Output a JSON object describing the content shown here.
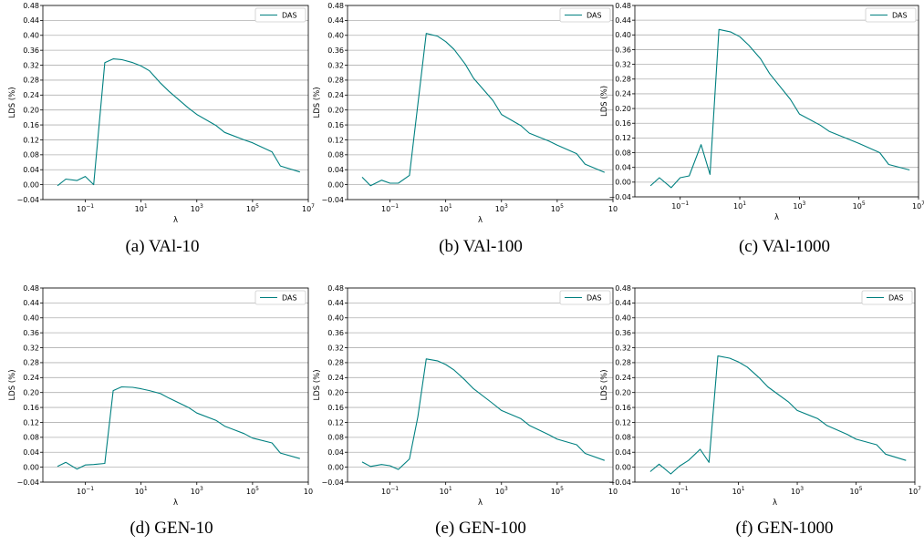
{
  "figure": {
    "captions": [
      "(a)  VAl-10",
      "(b)  VAl-100",
      "(c)  VAl-1000",
      "(d)  GEN-10",
      "(e)  GEN-100",
      "(f)  GEN-1000"
    ],
    "line_color": "#008080"
  },
  "chart_data": [
    {
      "type": "line",
      "panel": "a",
      "caption": "(a)  VAl-10",
      "xlabel": "λ",
      "ylabel": "LDS (%)",
      "xscale": "log",
      "xlim": [
        0.003,
        10000000
      ],
      "ylim": [
        -0.04,
        0.48
      ],
      "yticks": [
        "−0.04",
        "0.00",
        "0.04",
        "0.08",
        "0.12",
        "0.16",
        "0.20",
        "0.24",
        "0.28",
        "0.32",
        "0.36",
        "0.40",
        "0.44",
        "0.48"
      ],
      "xticks": [
        "10−1",
        "101",
        "103",
        "105",
        "107"
      ],
      "grid": "horizontal",
      "legend": "top-right",
      "series": [
        {
          "name": "DAS",
          "x": [
            0.01,
            0.02,
            0.05,
            0.1,
            0.2,
            0.5,
            1,
            2,
            5,
            10,
            20,
            50,
            100,
            500,
            1000,
            5000,
            10000,
            50000,
            100000,
            500000,
            1000000,
            5000000
          ],
          "y": [
            -0.003,
            0.015,
            0.011,
            0.022,
            0.0,
            0.327,
            0.337,
            0.335,
            0.327,
            0.318,
            0.305,
            0.272,
            0.25,
            0.205,
            0.188,
            0.158,
            0.14,
            0.12,
            0.112,
            0.088,
            0.05,
            0.034
          ]
        }
      ]
    },
    {
      "type": "line",
      "panel": "b",
      "caption": "(b)  VAl-100",
      "xlabel": "λ",
      "ylabel": "LDS (%)",
      "xscale": "log",
      "xlim": [
        0.003,
        10000000
      ],
      "ylim": [
        -0.04,
        0.48
      ],
      "yticks": [
        "−0.04",
        "0.00",
        "0.04",
        "0.08",
        "0.12",
        "0.16",
        "0.20",
        "0.24",
        "0.28",
        "0.32",
        "0.36",
        "0.40",
        "0.44",
        "0.48"
      ],
      "xticks": [
        "10−1",
        "101",
        "103",
        "105",
        "10"
      ],
      "grid": "horizontal",
      "legend": "top-right",
      "series": [
        {
          "name": "DAS",
          "x": [
            0.01,
            0.02,
            0.05,
            0.1,
            0.2,
            0.5,
            2,
            5,
            10,
            20,
            50,
            100,
            500,
            1000,
            5000,
            10000,
            50000,
            100000,
            500000,
            1000000,
            5000000
          ],
          "y": [
            0.02,
            -0.003,
            0.012,
            0.004,
            0.004,
            0.025,
            0.405,
            0.398,
            0.383,
            0.362,
            0.323,
            0.285,
            0.225,
            0.188,
            0.158,
            0.138,
            0.117,
            0.106,
            0.083,
            0.055,
            0.033
          ]
        }
      ]
    },
    {
      "type": "line",
      "panel": "c",
      "caption": "(c)  VAl-1000",
      "xlabel": "λ",
      "ylabel": "LDS (%)",
      "xscale": "log",
      "xlim": [
        0.003,
        10000000
      ],
      "ylim": [
        -0.04,
        0.48
      ],
      "yticks": [
        "−0.04",
        "0.00",
        "0.04",
        "0.08",
        "0.12",
        "0.16",
        "0.20",
        "0.24",
        "0.28",
        "0.32",
        "0.36",
        "0.40",
        "0.44",
        "0.48"
      ],
      "xticks": [
        "10−1",
        "101",
        "103",
        "105",
        "107"
      ],
      "grid": "horizontal",
      "legend": "top-right",
      "series": [
        {
          "name": "DAS",
          "x": [
            0.01,
            0.02,
            0.05,
            0.1,
            0.2,
            0.5,
            1,
            2,
            5,
            10,
            20,
            50,
            100,
            500,
            1000,
            5000,
            10000,
            50000,
            100000,
            500000,
            1000000,
            5000000
          ],
          "y": [
            -0.01,
            0.012,
            -0.015,
            0.012,
            0.017,
            0.102,
            0.021,
            0.415,
            0.408,
            0.395,
            0.372,
            0.335,
            0.295,
            0.225,
            0.185,
            0.155,
            0.138,
            0.115,
            0.105,
            0.08,
            0.048,
            0.033
          ]
        }
      ]
    },
    {
      "type": "line",
      "panel": "d",
      "caption": "(d)  GEN-10",
      "xlabel": "λ",
      "ylabel": "LDS (%)",
      "xscale": "log",
      "xlim": [
        0.003,
        10000000
      ],
      "ylim": [
        -0.04,
        0.48
      ],
      "yticks": [
        "−0.04",
        "0.00",
        "0.04",
        "0.08",
        "0.12",
        "0.16",
        "0.20",
        "0.24",
        "0.28",
        "0.32",
        "0.36",
        "0.40",
        "0.44",
        "0.48"
      ],
      "xticks": [
        "10−1",
        "101",
        "103",
        "105",
        "10"
      ],
      "grid": "horizontal",
      "legend": "top-right",
      "series": [
        {
          "name": "DAS",
          "x": [
            0.01,
            0.02,
            0.05,
            0.1,
            0.2,
            0.5,
            1,
            2,
            5,
            10,
            20,
            50,
            100,
            500,
            1000,
            5000,
            10000,
            50000,
            100000,
            500000,
            1000000,
            5000000
          ],
          "y": [
            0.002,
            0.013,
            -0.005,
            0.006,
            0.007,
            0.01,
            0.205,
            0.215,
            0.214,
            0.21,
            0.205,
            0.197,
            0.185,
            0.16,
            0.145,
            0.125,
            0.11,
            0.09,
            0.078,
            0.065,
            0.038,
            0.023
          ]
        }
      ]
    },
    {
      "type": "line",
      "panel": "e",
      "caption": "(e)  GEN-100",
      "xlabel": "λ",
      "ylabel": "LDS (%)",
      "xscale": "log",
      "xlim": [
        0.003,
        10000000
      ],
      "ylim": [
        -0.04,
        0.48
      ],
      "yticks": [
        "−0.04",
        "0.00",
        "0.04",
        "0.08",
        "0.12",
        "0.16",
        "0.20",
        "0.24",
        "0.28",
        "0.32",
        "0.36",
        "0.40",
        "0.44",
        "0.48"
      ],
      "xticks": [
        "10−1",
        "101",
        "103",
        "105",
        "10"
      ],
      "grid": "horizontal",
      "legend": "top-right",
      "series": [
        {
          "name": "DAS",
          "x": [
            0.01,
            0.02,
            0.05,
            0.1,
            0.2,
            0.5,
            1,
            2,
            5,
            10,
            20,
            50,
            100,
            500,
            1000,
            5000,
            10000,
            50000,
            100000,
            500000,
            1000000,
            5000000
          ],
          "y": [
            0.014,
            0.002,
            0.007,
            0.004,
            -0.006,
            0.022,
            0.135,
            0.29,
            0.285,
            0.275,
            0.26,
            0.233,
            0.21,
            0.17,
            0.152,
            0.13,
            0.112,
            0.087,
            0.075,
            0.06,
            0.037,
            0.018
          ]
        }
      ]
    },
    {
      "type": "line",
      "panel": "f",
      "caption": "(f)  GEN-1000",
      "xlabel": "λ",
      "ylabel": "LDS (%)",
      "xscale": "log",
      "xlim": [
        0.003,
        10000000
      ],
      "ylim": [
        -0.04,
        0.48
      ],
      "yticks": [
        "−0.04",
        "0.00",
        "0.04",
        "0.08",
        "0.12",
        "0.16",
        "0.20",
        "0.24",
        "0.28",
        "0.32",
        "0.36",
        "0.40",
        "0.44",
        "0.48"
      ],
      "xticks": [
        "10−1",
        "101",
        "103",
        "105",
        "107"
      ],
      "grid": "horizontal",
      "legend": "top-right",
      "series": [
        {
          "name": "DAS",
          "x": [
            0.01,
            0.02,
            0.05,
            0.1,
            0.2,
            0.5,
            1,
            2,
            5,
            10,
            20,
            50,
            100,
            500,
            1000,
            5000,
            10000,
            50000,
            100000,
            500000,
            1000000,
            5000000
          ],
          "y": [
            -0.012,
            0.008,
            -0.018,
            0.003,
            0.018,
            0.048,
            0.013,
            0.298,
            0.292,
            0.282,
            0.268,
            0.24,
            0.215,
            0.175,
            0.152,
            0.13,
            0.112,
            0.088,
            0.075,
            0.06,
            0.035,
            0.018
          ]
        }
      ]
    }
  ]
}
